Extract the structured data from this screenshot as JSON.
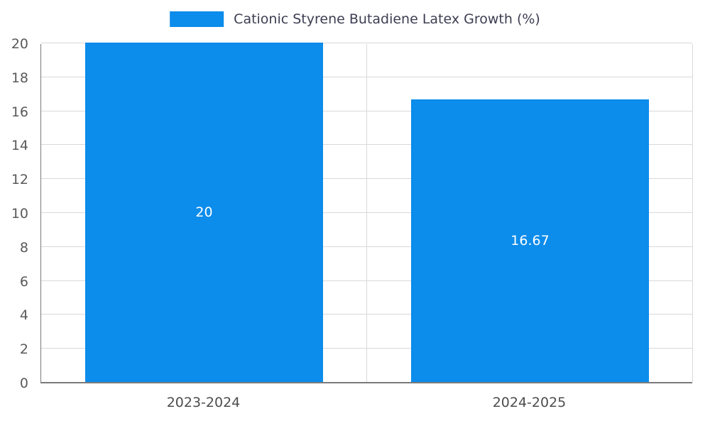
{
  "colors": {
    "bar": "#0c8ceb",
    "grid": "#d9d9d9",
    "axis": "#7a7a7a",
    "value_label": "#ffffff",
    "y_tick_text": "#5a5a5a",
    "x_tick_text": "#4d4d4d",
    "legend_text": "#3d3d52",
    "background": "#ffffff"
  },
  "chart_data": {
    "type": "bar",
    "categories": [
      "2023-2024",
      "2024-2025"
    ],
    "values": [
      20,
      16.67
    ],
    "value_labels": [
      "20",
      "16.67"
    ],
    "title": "",
    "xlabel": "",
    "ylabel": "",
    "ylim": [
      0,
      20
    ],
    "yticks": [
      0,
      2,
      4,
      6,
      8,
      10,
      12,
      14,
      16,
      18,
      20
    ],
    "grid": true,
    "legend_position": "top-center",
    "legend": [
      {
        "label": "Cationic Styrene Butadiene Latex Growth (%)",
        "color": "#0c8ceb"
      }
    ]
  }
}
